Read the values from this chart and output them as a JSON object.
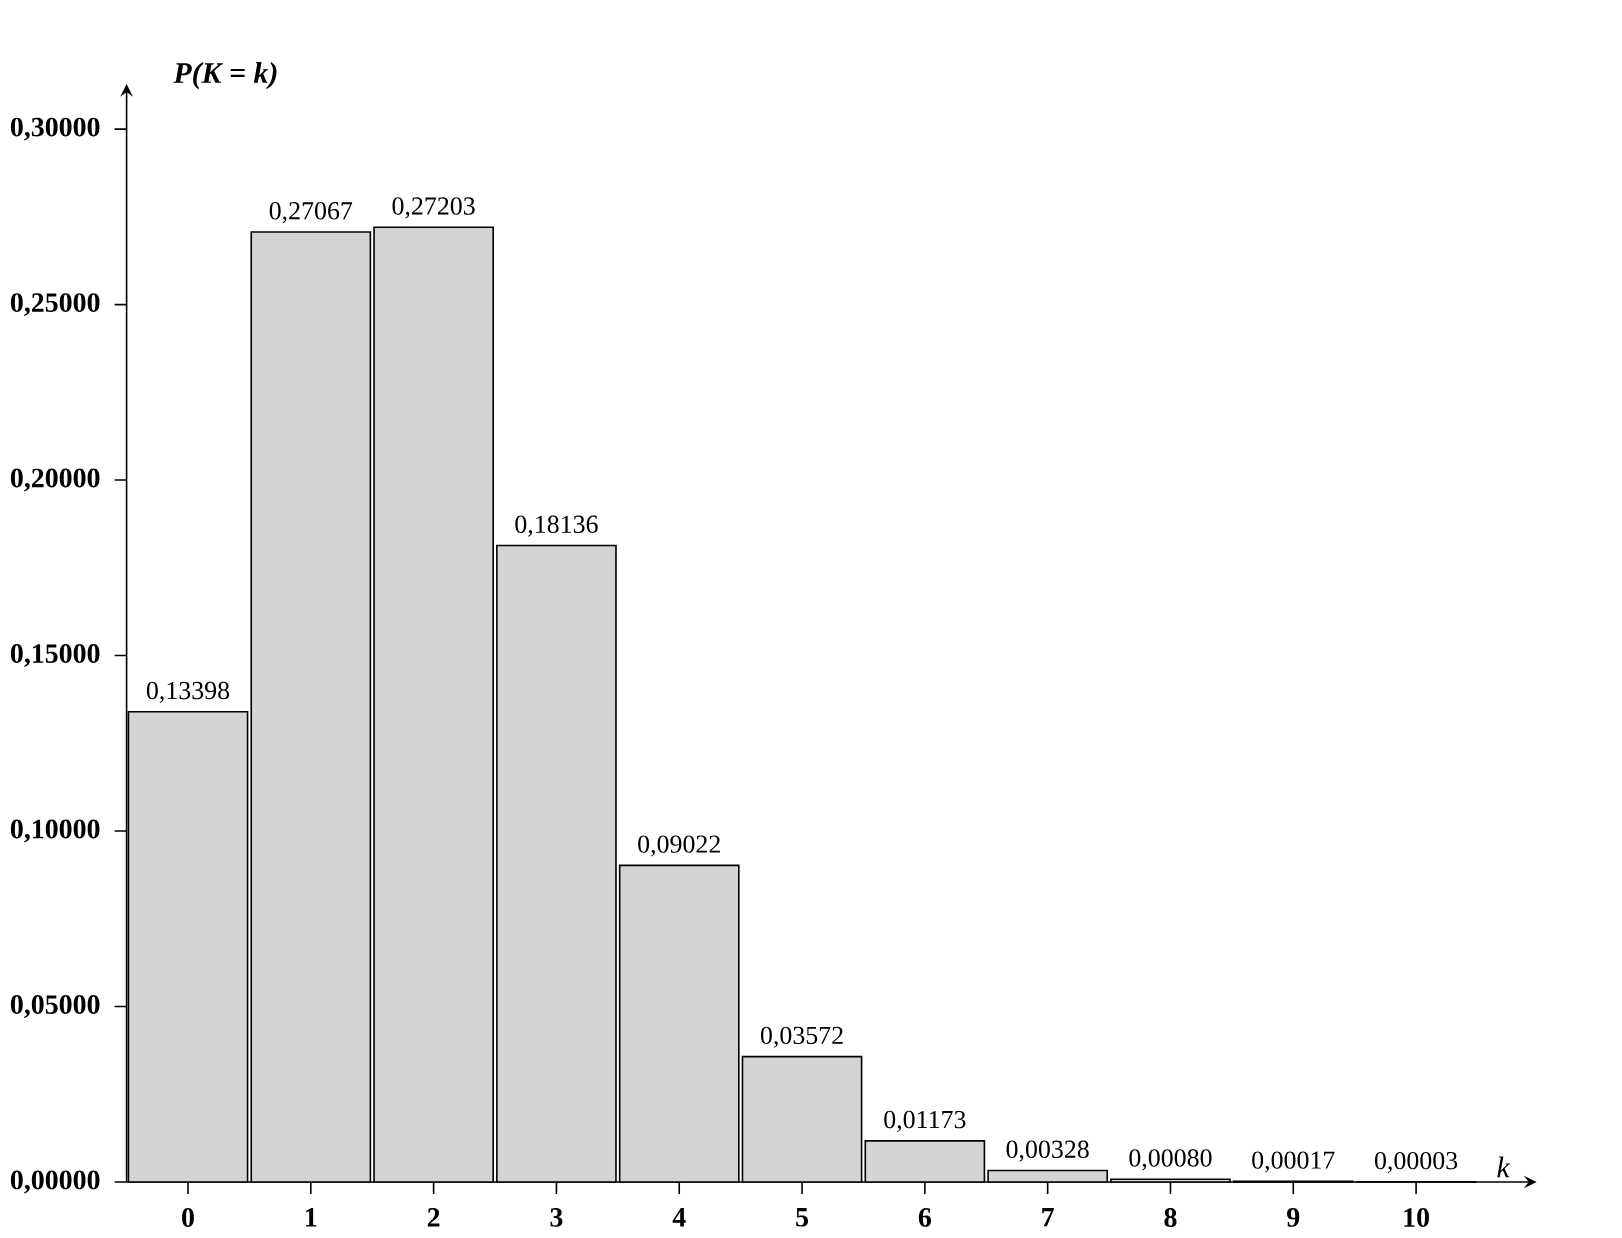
{
  "chart_data": {
    "type": "bar",
    "xlabel": "k",
    "ylabel": "P(K = k)",
    "categories": [
      "0",
      "1",
      "2",
      "3",
      "4",
      "5",
      "6",
      "7",
      "8",
      "9",
      "10"
    ],
    "values": [
      0.13398,
      0.27067,
      0.27203,
      0.18136,
      0.09022,
      0.03572,
      0.01173,
      0.00328,
      0.0008,
      0.00017,
      3e-05
    ],
    "value_labels": [
      "0,13398",
      "0,27067",
      "0,27203",
      "0,18136",
      "0,09022",
      "0,03572",
      "0,01173",
      "0,00328",
      "0,00080",
      "0,00017",
      "0,00003"
    ],
    "color": "#d4d4d4",
    "ylim": [
      0,
      0.31
    ],
    "yticks": [
      {
        "value": 0,
        "label": "0,00000"
      },
      {
        "value": 0.05,
        "label": "0,05000"
      },
      {
        "value": 0.1,
        "label": "0,10000"
      },
      {
        "value": 0.15,
        "label": "0,15000"
      },
      {
        "value": 0.2,
        "label": "0,20000"
      },
      {
        "value": 0.25,
        "label": "0,25000"
      },
      {
        "value": 0.3,
        "label": "0,30000"
      }
    ],
    "grid": false
  }
}
